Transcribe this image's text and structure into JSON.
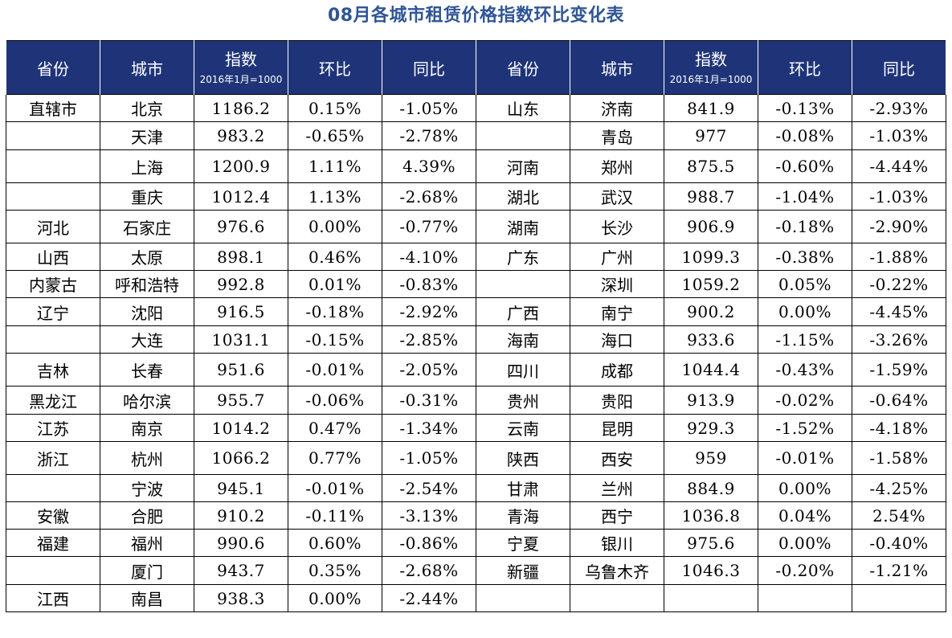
{
  "title": "08月各城市租赁价格指数环比变化表",
  "headers": {
    "province": "省份",
    "city": "城市",
    "index_main": "指数",
    "index_sub": "2016年1月=1000",
    "mom": "环比",
    "yoy": "同比"
  },
  "left": [
    {
      "province": "直辖市",
      "city": "北京",
      "index": "1186.2",
      "mom": "0.15%",
      "yoy": "-1.05%"
    },
    {
      "province": "",
      "city": "天津",
      "index": "983.2",
      "mom": "-0.65%",
      "yoy": "-2.78%"
    },
    {
      "province": "",
      "city": "上海",
      "index": "1200.9",
      "mom": "1.11%",
      "yoy": "4.39%"
    },
    {
      "province": "",
      "city": "重庆",
      "index": "1012.4",
      "mom": "1.13%",
      "yoy": "-2.68%"
    },
    {
      "province": "河北",
      "city": "石家庄",
      "index": "976.6",
      "mom": "0.00%",
      "yoy": "-0.77%"
    },
    {
      "province": "山西",
      "city": "太原",
      "index": "898.1",
      "mom": "0.46%",
      "yoy": "-4.10%"
    },
    {
      "province": "内蒙古",
      "city": "呼和浩特",
      "index": "992.8",
      "mom": "0.01%",
      "yoy": "-0.83%"
    },
    {
      "province": "辽宁",
      "city": "沈阳",
      "index": "916.5",
      "mom": "-0.18%",
      "yoy": "-2.92%"
    },
    {
      "province": "",
      "city": "大连",
      "index": "1031.1",
      "mom": "-0.15%",
      "yoy": "-2.85%"
    },
    {
      "province": "吉林",
      "city": "长春",
      "index": "951.6",
      "mom": "-0.01%",
      "yoy": "-2.05%"
    },
    {
      "province": "黑龙江",
      "city": "哈尔滨",
      "index": "955.7",
      "mom": "-0.06%",
      "yoy": "-0.31%"
    },
    {
      "province": "江苏",
      "city": "南京",
      "index": "1014.2",
      "mom": "0.47%",
      "yoy": "-1.34%"
    },
    {
      "province": "浙江",
      "city": "杭州",
      "index": "1066.2",
      "mom": "0.77%",
      "yoy": "-1.05%"
    },
    {
      "province": "",
      "city": "宁波",
      "index": "945.1",
      "mom": "-0.01%",
      "yoy": "-2.54%"
    },
    {
      "province": "安徽",
      "city": "合肥",
      "index": "910.2",
      "mom": "-0.11%",
      "yoy": "-3.13%"
    },
    {
      "province": "福建",
      "city": "福州",
      "index": "990.6",
      "mom": "0.60%",
      "yoy": "-0.86%"
    },
    {
      "province": "",
      "city": "厦门",
      "index": "943.7",
      "mom": "0.35%",
      "yoy": "-2.68%"
    },
    {
      "province": "江西",
      "city": "南昌",
      "index": "938.3",
      "mom": "0.00%",
      "yoy": "-2.44%"
    }
  ],
  "right": [
    {
      "province": "山东",
      "city": "济南",
      "index": "841.9",
      "mom": "-0.13%",
      "yoy": "-2.93%"
    },
    {
      "province": "",
      "city": "青岛",
      "index": "977",
      "mom": "-0.08%",
      "yoy": "-1.03%"
    },
    {
      "province": "河南",
      "city": "郑州",
      "index": "875.5",
      "mom": "-0.60%",
      "yoy": "-4.44%"
    },
    {
      "province": "湖北",
      "city": "武汉",
      "index": "988.7",
      "mom": "-1.04%",
      "yoy": "-1.03%"
    },
    {
      "province": "湖南",
      "city": "长沙",
      "index": "906.9",
      "mom": "-0.18%",
      "yoy": "-2.90%"
    },
    {
      "province": "广东",
      "city": "广州",
      "index": "1099.3",
      "mom": "-0.38%",
      "yoy": "-1.88%"
    },
    {
      "province": "",
      "city": "深圳",
      "index": "1059.2",
      "mom": "0.05%",
      "yoy": "-0.22%"
    },
    {
      "province": "广西",
      "city": "南宁",
      "index": "900.2",
      "mom": "0.00%",
      "yoy": "-4.45%"
    },
    {
      "province": "海南",
      "city": "海口",
      "index": "933.6",
      "mom": "-1.15%",
      "yoy": "-3.26%"
    },
    {
      "province": "四川",
      "city": "成都",
      "index": "1044.4",
      "mom": "-0.43%",
      "yoy": "-1.59%"
    },
    {
      "province": "贵州",
      "city": "贵阳",
      "index": "913.9",
      "mom": "-0.02%",
      "yoy": "-0.64%"
    },
    {
      "province": "云南",
      "city": "昆明",
      "index": "929.3",
      "mom": "-1.52%",
      "yoy": "-4.18%"
    },
    {
      "province": "陕西",
      "city": "西安",
      "index": "959",
      "mom": "-0.01%",
      "yoy": "-1.58%"
    },
    {
      "province": "甘肃",
      "city": "兰州",
      "index": "884.9",
      "mom": "0.00%",
      "yoy": "-4.25%"
    },
    {
      "province": "青海",
      "city": "西宁",
      "index": "1036.8",
      "mom": "0.04%",
      "yoy": "2.54%"
    },
    {
      "province": "宁夏",
      "city": "银川",
      "index": "975.6",
      "mom": "0.00%",
      "yoy": "-0.40%"
    },
    {
      "province": "新疆",
      "city": "乌鲁木齐",
      "index": "1046.3",
      "mom": "-0.20%",
      "yoy": "-1.21%"
    },
    {
      "province": "",
      "city": "",
      "index": "",
      "mom": "",
      "yoy": ""
    }
  ]
}
